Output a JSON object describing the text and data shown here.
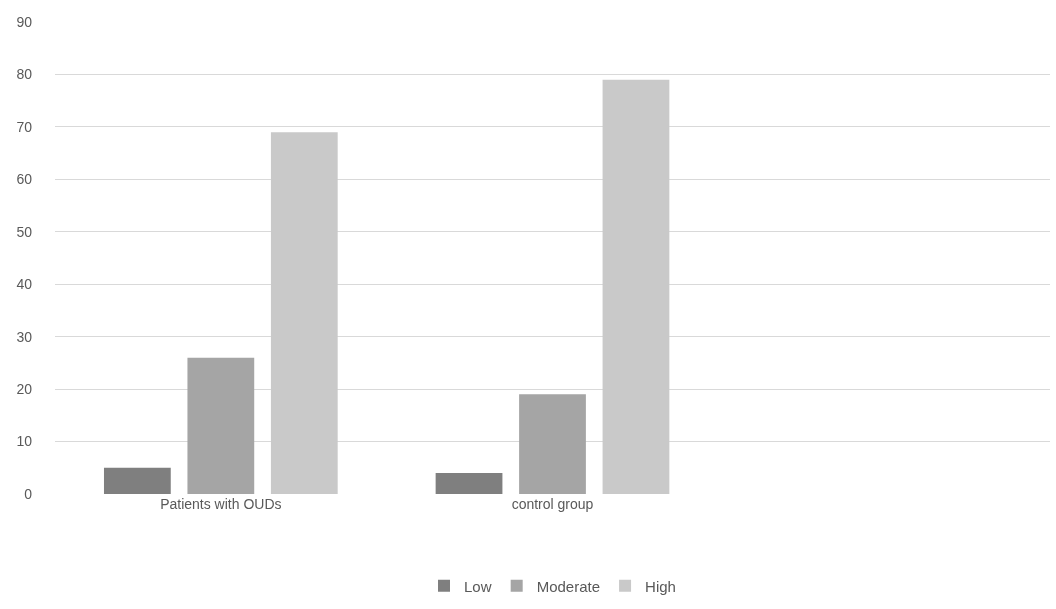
{
  "chart_data": {
    "type": "bar",
    "categories": [
      "Patients with OUDs",
      "control group",
      null
    ],
    "series": [
      {
        "name": "Low",
        "color": "#7f7f7f",
        "values": [
          5,
          4,
          null
        ]
      },
      {
        "name": "Moderate",
        "color": "#a5a5a5",
        "values": [
          26,
          19,
          null
        ]
      },
      {
        "name": "High",
        "color": "#c9c9c9",
        "values": [
          69,
          79,
          null
        ]
      }
    ],
    "ylim": [
      0,
      90
    ],
    "yticks": [
      0,
      10,
      20,
      30,
      40,
      50,
      60,
      70,
      80,
      90
    ],
    "grid": "y",
    "legend": "bottom"
  }
}
